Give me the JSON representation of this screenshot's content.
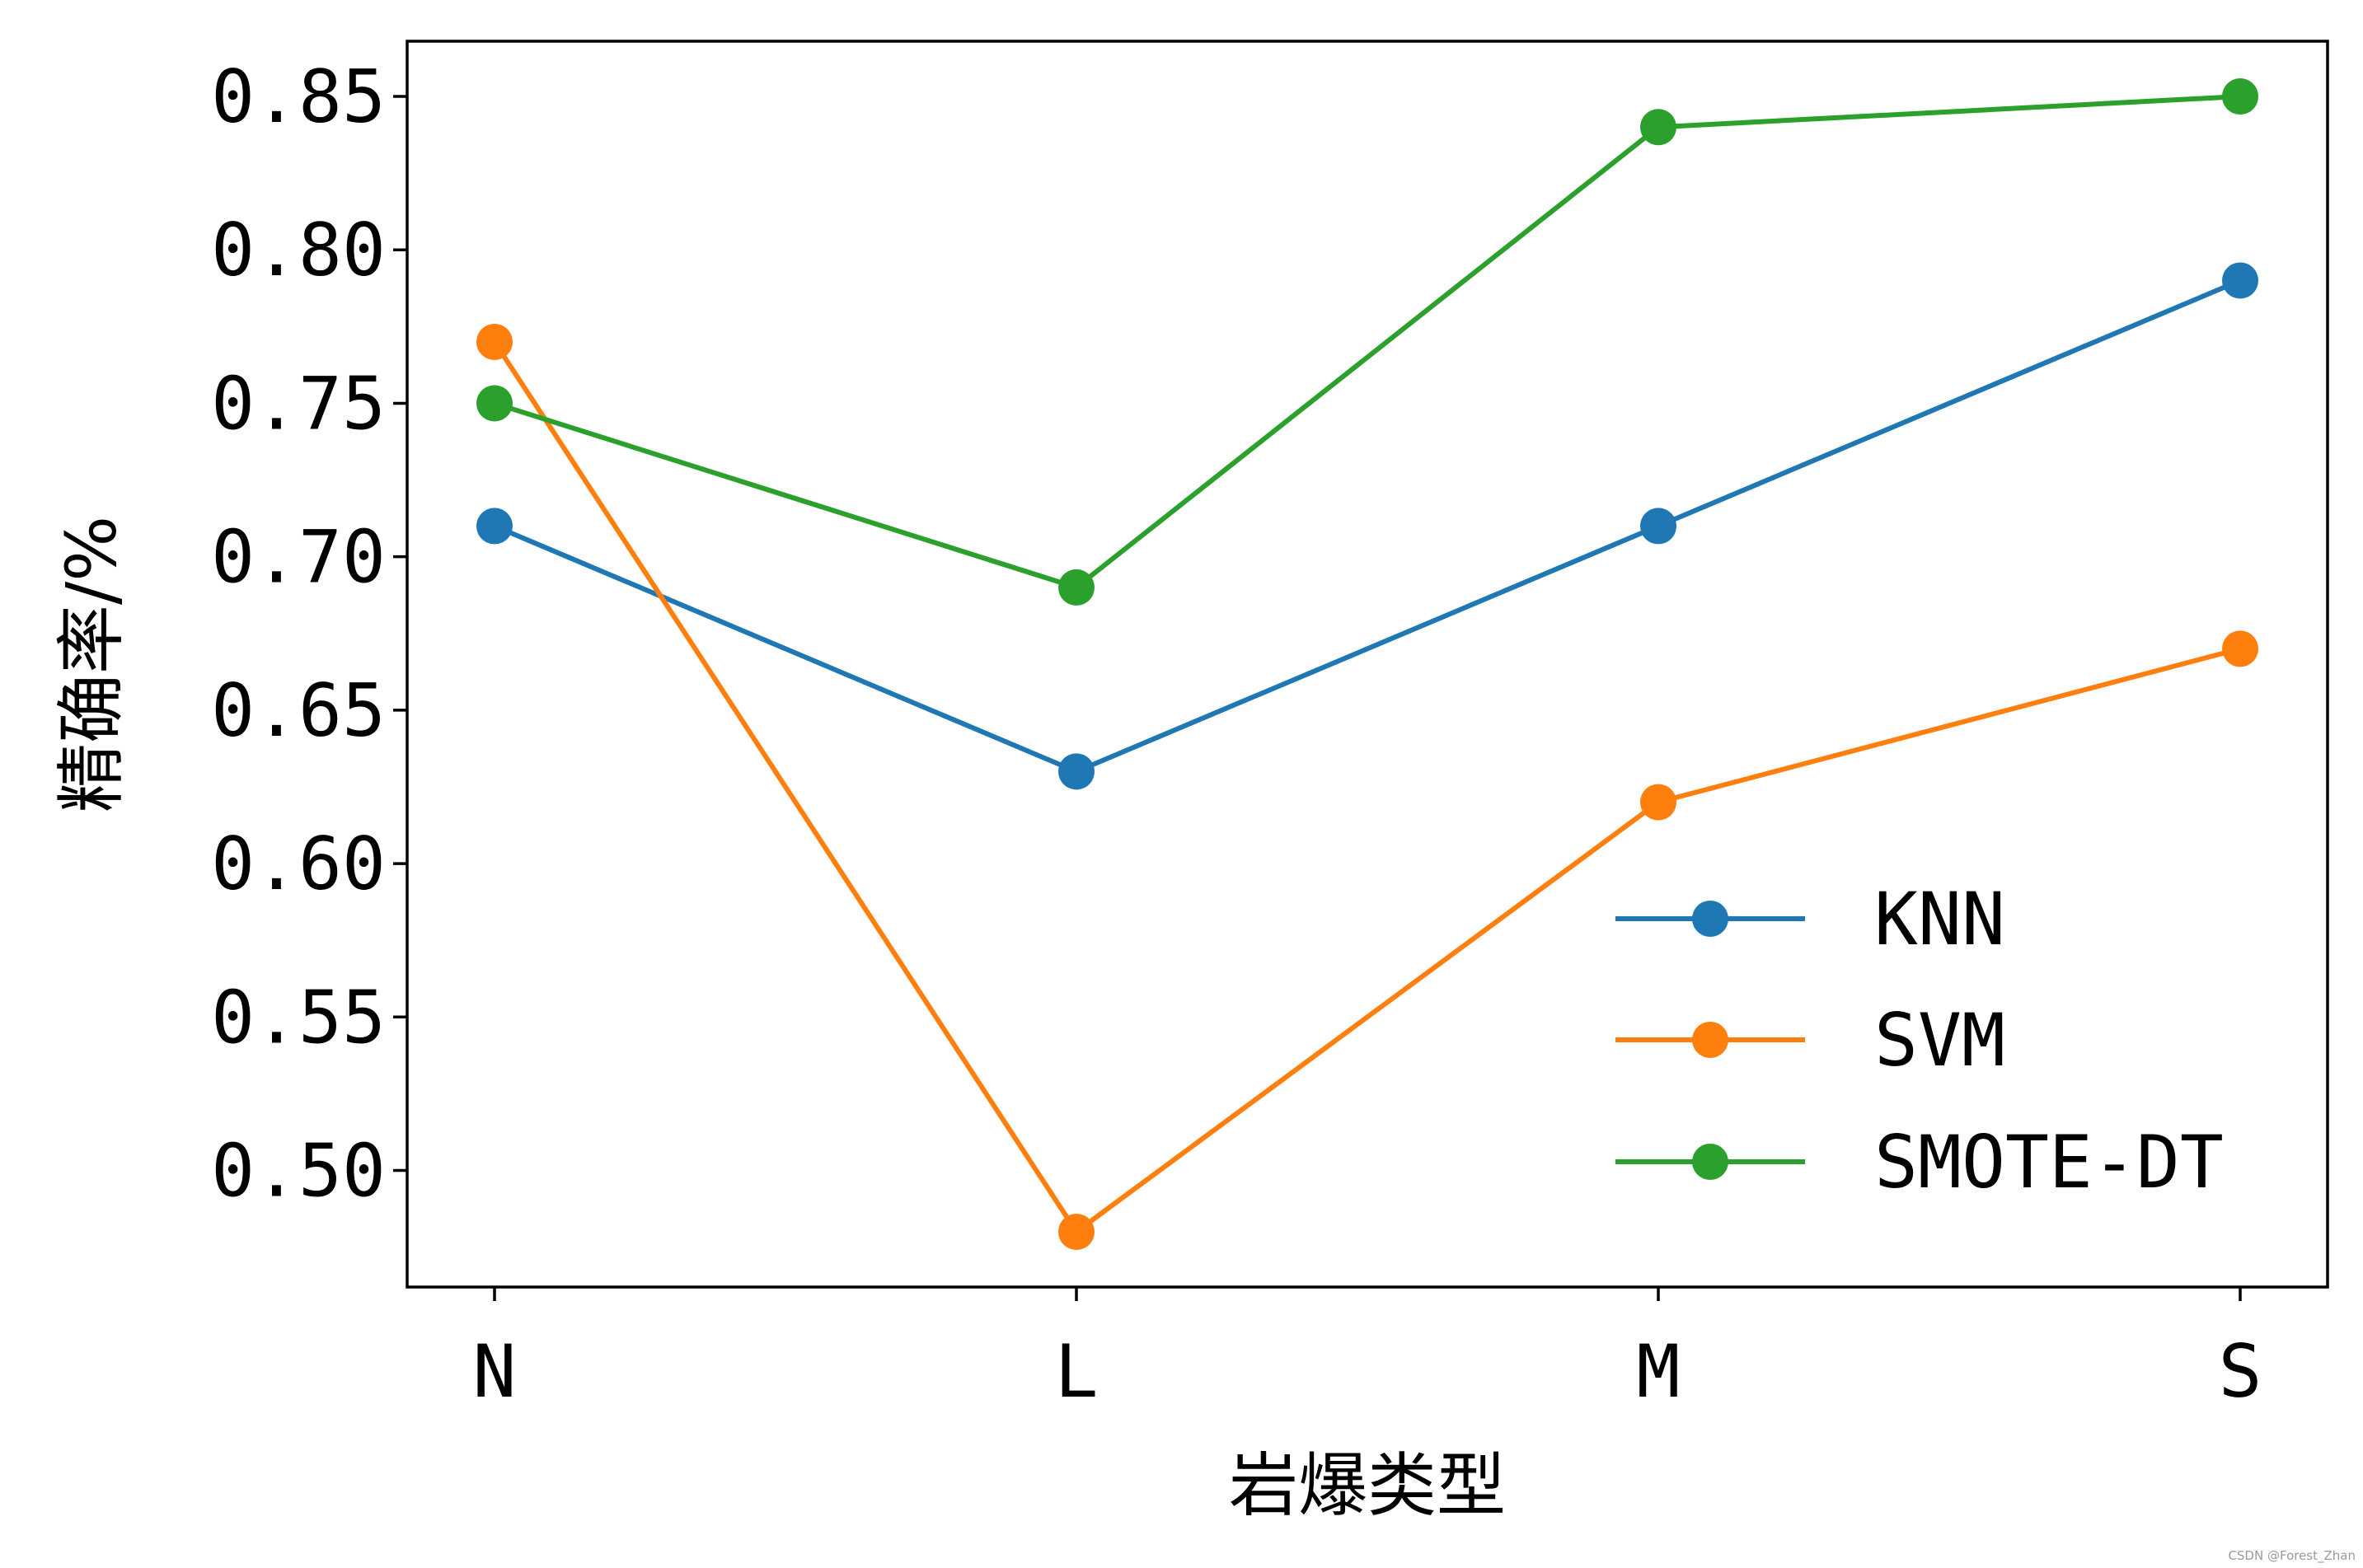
{
  "chart_data": {
    "type": "line",
    "title": "",
    "xlabel": "岩爆类型",
    "ylabel": "精确率/%",
    "categories": [
      "N",
      "L",
      "M",
      "S"
    ],
    "ylim": [
      0.462,
      0.868
    ],
    "yticks": [
      "0.50",
      "0.55",
      "0.60",
      "0.65",
      "0.70",
      "0.75",
      "0.80",
      "0.85"
    ],
    "ytick_values": [
      0.5,
      0.55,
      0.6,
      0.65,
      0.7,
      0.75,
      0.8,
      0.85
    ],
    "grid": false,
    "legend_position": "lower-right",
    "series": [
      {
        "name": "KNN",
        "color": "#1f77b4",
        "values": [
          0.71,
          0.63,
          0.71,
          0.79
        ]
      },
      {
        "name": "SVM",
        "color": "#ff7f0e",
        "values": [
          0.77,
          0.48,
          0.62,
          0.67
        ]
      },
      {
        "name": "SMOTE-DT",
        "color": "#2ca02c",
        "values": [
          0.75,
          0.69,
          0.84,
          0.85
        ]
      }
    ]
  },
  "watermark": "CSDN @Forest_Zhan"
}
